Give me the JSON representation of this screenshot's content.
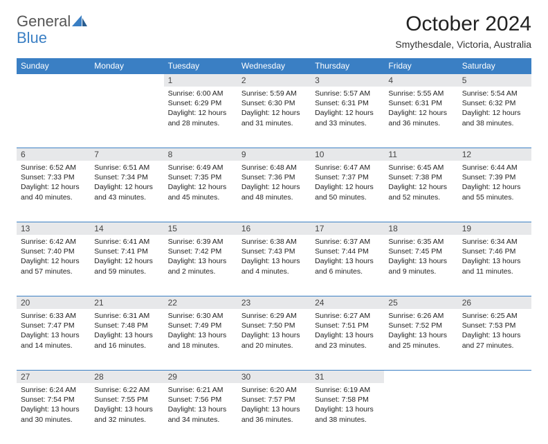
{
  "logo": {
    "text1": "General",
    "text2": "Blue"
  },
  "title": {
    "month": "October 2024",
    "location": "Smythesdale, Victoria, Australia"
  },
  "colors": {
    "accent": "#3a7fc4",
    "header_bg": "#3a7fc4",
    "daynum_bg": "#e7e8ea",
    "text": "#222222"
  },
  "day_headers": [
    "Sunday",
    "Monday",
    "Tuesday",
    "Wednesday",
    "Thursday",
    "Friday",
    "Saturday"
  ],
  "weeks": [
    [
      null,
      null,
      {
        "n": "1",
        "sunrise": "6:00 AM",
        "sunset": "6:29 PM",
        "daylight": "12 hours and 28 minutes."
      },
      {
        "n": "2",
        "sunrise": "5:59 AM",
        "sunset": "6:30 PM",
        "daylight": "12 hours and 31 minutes."
      },
      {
        "n": "3",
        "sunrise": "5:57 AM",
        "sunset": "6:31 PM",
        "daylight": "12 hours and 33 minutes."
      },
      {
        "n": "4",
        "sunrise": "5:55 AM",
        "sunset": "6:31 PM",
        "daylight": "12 hours and 36 minutes."
      },
      {
        "n": "5",
        "sunrise": "5:54 AM",
        "sunset": "6:32 PM",
        "daylight": "12 hours and 38 minutes."
      }
    ],
    [
      {
        "n": "6",
        "sunrise": "6:52 AM",
        "sunset": "7:33 PM",
        "daylight": "12 hours and 40 minutes."
      },
      {
        "n": "7",
        "sunrise": "6:51 AM",
        "sunset": "7:34 PM",
        "daylight": "12 hours and 43 minutes."
      },
      {
        "n": "8",
        "sunrise": "6:49 AM",
        "sunset": "7:35 PM",
        "daylight": "12 hours and 45 minutes."
      },
      {
        "n": "9",
        "sunrise": "6:48 AM",
        "sunset": "7:36 PM",
        "daylight": "12 hours and 48 minutes."
      },
      {
        "n": "10",
        "sunrise": "6:47 AM",
        "sunset": "7:37 PM",
        "daylight": "12 hours and 50 minutes."
      },
      {
        "n": "11",
        "sunrise": "6:45 AM",
        "sunset": "7:38 PM",
        "daylight": "12 hours and 52 minutes."
      },
      {
        "n": "12",
        "sunrise": "6:44 AM",
        "sunset": "7:39 PM",
        "daylight": "12 hours and 55 minutes."
      }
    ],
    [
      {
        "n": "13",
        "sunrise": "6:42 AM",
        "sunset": "7:40 PM",
        "daylight": "12 hours and 57 minutes."
      },
      {
        "n": "14",
        "sunrise": "6:41 AM",
        "sunset": "7:41 PM",
        "daylight": "12 hours and 59 minutes."
      },
      {
        "n": "15",
        "sunrise": "6:39 AM",
        "sunset": "7:42 PM",
        "daylight": "13 hours and 2 minutes."
      },
      {
        "n": "16",
        "sunrise": "6:38 AM",
        "sunset": "7:43 PM",
        "daylight": "13 hours and 4 minutes."
      },
      {
        "n": "17",
        "sunrise": "6:37 AM",
        "sunset": "7:44 PM",
        "daylight": "13 hours and 6 minutes."
      },
      {
        "n": "18",
        "sunrise": "6:35 AM",
        "sunset": "7:45 PM",
        "daylight": "13 hours and 9 minutes."
      },
      {
        "n": "19",
        "sunrise": "6:34 AM",
        "sunset": "7:46 PM",
        "daylight": "13 hours and 11 minutes."
      }
    ],
    [
      {
        "n": "20",
        "sunrise": "6:33 AM",
        "sunset": "7:47 PM",
        "daylight": "13 hours and 14 minutes."
      },
      {
        "n": "21",
        "sunrise": "6:31 AM",
        "sunset": "7:48 PM",
        "daylight": "13 hours and 16 minutes."
      },
      {
        "n": "22",
        "sunrise": "6:30 AM",
        "sunset": "7:49 PM",
        "daylight": "13 hours and 18 minutes."
      },
      {
        "n": "23",
        "sunrise": "6:29 AM",
        "sunset": "7:50 PM",
        "daylight": "13 hours and 20 minutes."
      },
      {
        "n": "24",
        "sunrise": "6:27 AM",
        "sunset": "7:51 PM",
        "daylight": "13 hours and 23 minutes."
      },
      {
        "n": "25",
        "sunrise": "6:26 AM",
        "sunset": "7:52 PM",
        "daylight": "13 hours and 25 minutes."
      },
      {
        "n": "26",
        "sunrise": "6:25 AM",
        "sunset": "7:53 PM",
        "daylight": "13 hours and 27 minutes."
      }
    ],
    [
      {
        "n": "27",
        "sunrise": "6:24 AM",
        "sunset": "7:54 PM",
        "daylight": "13 hours and 30 minutes."
      },
      {
        "n": "28",
        "sunrise": "6:22 AM",
        "sunset": "7:55 PM",
        "daylight": "13 hours and 32 minutes."
      },
      {
        "n": "29",
        "sunrise": "6:21 AM",
        "sunset": "7:56 PM",
        "daylight": "13 hours and 34 minutes."
      },
      {
        "n": "30",
        "sunrise": "6:20 AM",
        "sunset": "7:57 PM",
        "daylight": "13 hours and 36 minutes."
      },
      {
        "n": "31",
        "sunrise": "6:19 AM",
        "sunset": "7:58 PM",
        "daylight": "13 hours and 38 minutes."
      },
      null,
      null
    ]
  ],
  "labels": {
    "sunrise": "Sunrise:",
    "sunset": "Sunset:",
    "daylight": "Daylight:"
  }
}
